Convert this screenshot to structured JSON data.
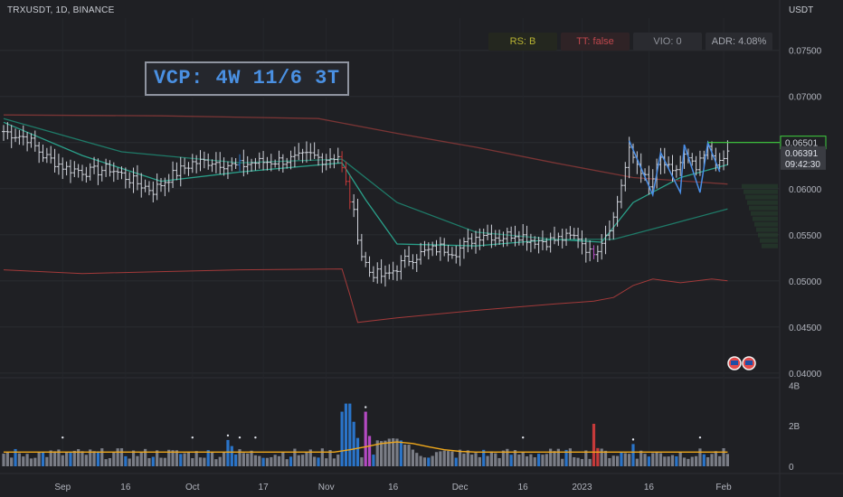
{
  "header": {
    "symbol": "TRXUSDT, 1D, BINANCE",
    "currency": "USDT"
  },
  "badges": {
    "rs": "RS: B",
    "tt": "TT: false",
    "vio": "VIO: 0",
    "adr": "ADR: 4.08%"
  },
  "annotation": {
    "vcp_label": "VCP: 4W 11/6 3T"
  },
  "colors": {
    "background": "#1f2024",
    "candle": "#d1d4dc",
    "ma_short": "#2aa08a",
    "ma_long": "#7a3535",
    "rs_line": "#a33a3a",
    "volume_avg": "#f0a81b",
    "vcp_lines": "#4a8ee6",
    "highlight_line": "#3fd13f",
    "volume_high": "#2a74c9",
    "volume_spike": "#c63a3a",
    "volume_purple": "#b44ac2",
    "volume_normal": "#7a7d86"
  },
  "chart_data": {
    "type": "ohlc",
    "title": "TRXUSDT, 1D, BINANCE",
    "x_ticks": [
      "Sep",
      "16",
      "Oct",
      "17",
      "Nov",
      "16",
      "Dec",
      "16",
      "2023",
      "16",
      "Feb"
    ],
    "price_axis": {
      "unit": "USDT",
      "ticks": [
        "0.07500",
        "0.07000",
        "0.06500",
        "0.06000",
        "0.05500",
        "0.05000",
        "0.04500",
        "0.04000"
      ],
      "range": [
        0.0395,
        0.0785
      ]
    },
    "price_labels": {
      "highlight": "0.06501",
      "last": "0.06391",
      "countdown": "09:42:30"
    },
    "volume_axis": {
      "ticks": [
        "4B",
        "2B",
        "0"
      ],
      "range": [
        0,
        4.2
      ]
    },
    "anchors": [
      {
        "i": 0,
        "c": 0.0662
      },
      {
        "i": 6,
        "c": 0.0655
      },
      {
        "i": 10,
        "c": 0.0636
      },
      {
        "i": 16,
        "c": 0.0622
      },
      {
        "i": 22,
        "c": 0.0618
      },
      {
        "i": 27,
        "c": 0.0622
      },
      {
        "i": 33,
        "c": 0.0608
      },
      {
        "i": 38,
        "c": 0.0598
      },
      {
        "i": 42,
        "c": 0.0612
      },
      {
        "i": 48,
        "c": 0.0628
      },
      {
        "i": 53,
        "c": 0.063
      },
      {
        "i": 59,
        "c": 0.0624
      },
      {
        "i": 63,
        "c": 0.0628
      },
      {
        "i": 69,
        "c": 0.063
      },
      {
        "i": 74,
        "c": 0.0632
      },
      {
        "i": 78,
        "c": 0.0636
      },
      {
        "i": 81,
        "c": 0.0632
      },
      {
        "i": 85,
        "c": 0.0636
      },
      {
        "i": 87,
        "c": 0.0605
      },
      {
        "i": 89,
        "c": 0.0572
      },
      {
        "i": 91,
        "c": 0.0528
      },
      {
        "i": 93,
        "c": 0.051
      },
      {
        "i": 97,
        "c": 0.0504
      },
      {
        "i": 102,
        "c": 0.0522
      },
      {
        "i": 107,
        "c": 0.0531
      },
      {
        "i": 111,
        "c": 0.0536
      },
      {
        "i": 115,
        "c": 0.0532
      },
      {
        "i": 119,
        "c": 0.0545
      },
      {
        "i": 122,
        "c": 0.0552
      },
      {
        "i": 126,
        "c": 0.0547
      },
      {
        "i": 130,
        "c": 0.0552
      },
      {
        "i": 134,
        "c": 0.0545
      },
      {
        "i": 138,
        "c": 0.0543
      },
      {
        "i": 142,
        "c": 0.0546
      },
      {
        "i": 146,
        "c": 0.0548
      },
      {
        "i": 149,
        "c": 0.053
      },
      {
        "i": 151,
        "c": 0.0537
      },
      {
        "i": 153,
        "c": 0.0552
      },
      {
        "i": 155,
        "c": 0.0568
      },
      {
        "i": 157,
        "c": 0.0605
      },
      {
        "i": 159,
        "c": 0.064
      },
      {
        "i": 162,
        "c": 0.0621
      },
      {
        "i": 164,
        "c": 0.06
      },
      {
        "i": 167,
        "c": 0.0632
      },
      {
        "i": 170,
        "c": 0.0615
      },
      {
        "i": 173,
        "c": 0.0635
      },
      {
        "i": 176,
        "c": 0.062
      },
      {
        "i": 179,
        "c": 0.0642
      },
      {
        "i": 182,
        "c": 0.0625
      },
      {
        "i": 184,
        "c": 0.0639
      }
    ],
    "moving_averages": [
      {
        "name": "ma_short",
        "points": [
          [
            0,
            0.0672
          ],
          [
            20,
            0.0636
          ],
          [
            40,
            0.0608
          ],
          [
            60,
            0.0618
          ],
          [
            86,
            0.0628
          ],
          [
            92,
            0.0588
          ],
          [
            100,
            0.054
          ],
          [
            120,
            0.0538
          ],
          [
            140,
            0.0545
          ],
          [
            152,
            0.0542
          ],
          [
            160,
            0.0585
          ],
          [
            172,
            0.0612
          ],
          [
            184,
            0.0626
          ]
        ]
      },
      {
        "name": "ma_mid",
        "points": [
          [
            0,
            0.0676
          ],
          [
            30,
            0.064
          ],
          [
            60,
            0.0628
          ],
          [
            86,
            0.0632
          ],
          [
            100,
            0.0585
          ],
          [
            120,
            0.0553
          ],
          [
            140,
            0.0545
          ],
          [
            155,
            0.0545
          ],
          [
            170,
            0.0562
          ],
          [
            184,
            0.0578
          ]
        ]
      },
      {
        "name": "ma_long",
        "points": [
          [
            0,
            0.068
          ],
          [
            40,
            0.0679
          ],
          [
            80,
            0.0676
          ],
          [
            100,
            0.066
          ],
          [
            120,
            0.0645
          ],
          [
            140,
            0.0628
          ],
          [
            160,
            0.0612
          ],
          [
            184,
            0.0605
          ]
        ]
      }
    ],
    "rs_line": [
      [
        0,
        0.0512
      ],
      [
        20,
        0.0508
      ],
      [
        40,
        0.051
      ],
      [
        60,
        0.0512
      ],
      [
        86,
        0.0513
      ],
      [
        88,
        0.0485
      ],
      [
        90,
        0.0455
      ],
      [
        100,
        0.046
      ],
      [
        120,
        0.0468
      ],
      [
        140,
        0.0475
      ],
      [
        150,
        0.0478
      ],
      [
        155,
        0.0482
      ],
      [
        160,
        0.0495
      ],
      [
        165,
        0.0502
      ],
      [
        172,
        0.0498
      ],
      [
        180,
        0.0502
      ],
      [
        184,
        0.05
      ]
    ],
    "vcp_contractions": [
      [
        159,
        0.0652
      ],
      [
        165,
        0.05932
      ],
      [
        167,
        0.06392
      ],
      [
        172,
        0.05959
      ],
      [
        173,
        0.06477
      ],
      [
        177,
        0.05959
      ],
      [
        179,
        0.06499
      ],
      [
        182,
        0.06182
      ]
    ],
    "volume": {
      "baseline_avg": 0.7,
      "spikes": [
        {
          "i": 86,
          "v": 2.7,
          "color": "volume_high"
        },
        {
          "i": 87,
          "v": 3.1,
          "color": "volume_high"
        },
        {
          "i": 88,
          "v": 3.1,
          "color": "volume_high"
        },
        {
          "i": 89,
          "v": 2.2,
          "color": "volume_high"
        },
        {
          "i": 90,
          "v": 1.4,
          "color": "volume_high"
        },
        {
          "i": 92,
          "v": 2.7,
          "color": "volume_purple"
        },
        {
          "i": 93,
          "v": 1.5,
          "color": "volume_purple"
        },
        {
          "i": 57,
          "v": 1.3,
          "color": "volume_high"
        },
        {
          "i": 58,
          "v": 1.0,
          "color": "volume_high"
        },
        {
          "i": 150,
          "v": 2.1,
          "color": "volume_spike"
        },
        {
          "i": 151,
          "v": 0.9,
          "color": "volume_spike"
        },
        {
          "i": 160,
          "v": 1.1,
          "color": "volume_high"
        }
      ]
    }
  }
}
